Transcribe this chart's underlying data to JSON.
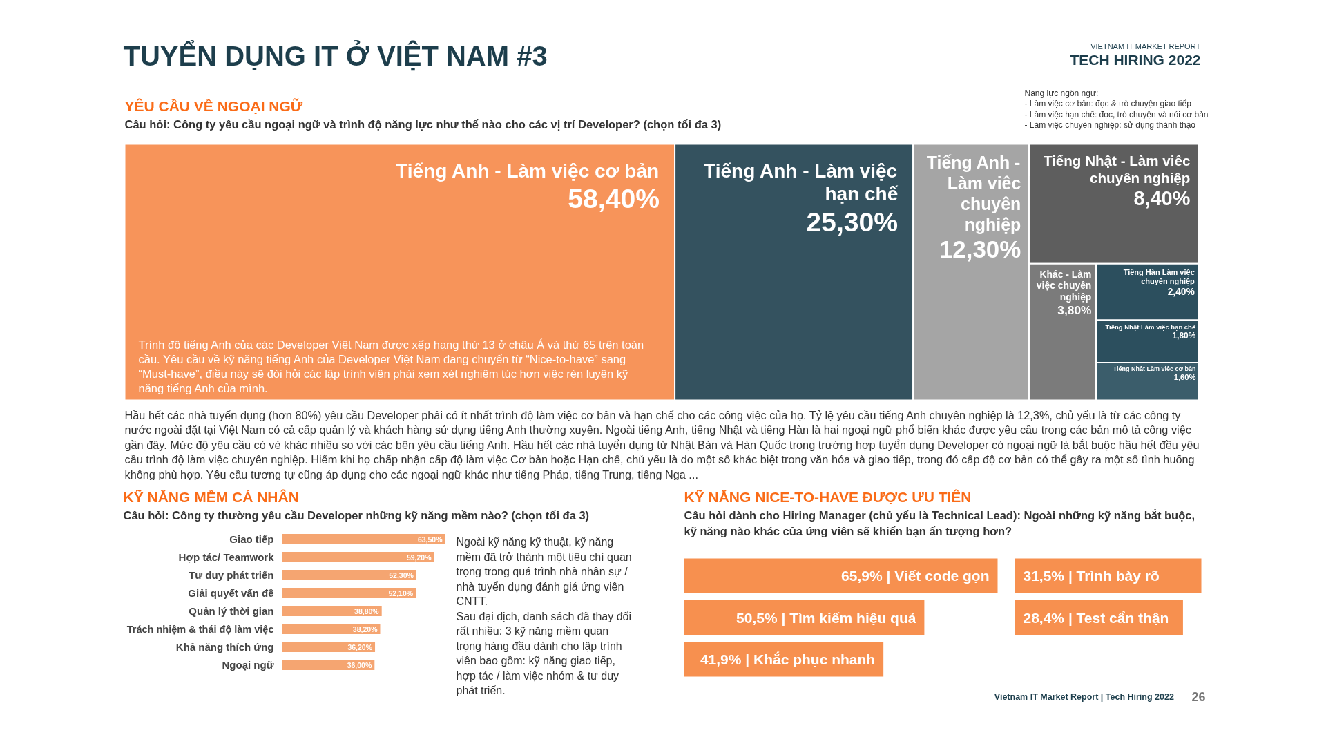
{
  "chart_data": [
    {
      "type": "other",
      "title": "YÊU CẦU VỀ NGOẠI NGỮ",
      "subtitle": "Câu hỏi: Công ty yêu cầu ngoại ngữ và trình độ năng lực như thế nào cho các vị trí Developer? (chọn tối đa 3)",
      "categories": [
        "Tiếng Anh - Làm việc cơ bản",
        "Tiếng Anh - Làm việc hạn chế",
        "Tiếng Anh - Làm viêc chuyên nghiệp",
        "Tiếng Nhật - Làm viêc chuyên nghiệp",
        "Khác - Làm việc chuyên nghiệp",
        "Tiếng Hàn Làm việc chuyên nghiệp",
        "Tiếng Nhật Làm việc hạn chế",
        "Tiếng Nhật Làm việc cơ bản"
      ],
      "values": [
        58.4,
        25.3,
        12.3,
        8.4,
        3.8,
        2.4,
        1.8,
        1.6
      ],
      "value_labels": [
        "58,40%",
        "25,30%",
        "12,30%",
        "8,40%",
        "3,80%",
        "2,40%",
        "1,80%",
        "1,60%"
      ],
      "colors": [
        "#f7945a",
        "#34525f",
        "#a5a5a5",
        "#5e5e5e",
        "#7b7b7b",
        "#2c4f5e",
        "#2c4f5e",
        "#3b5d6b"
      ],
      "annotations": [
        "TUYỂN DỤNG IT Ở VIỆT NAM #3",
        "VIETNAM IT MARKET REPORT",
        "TECH HIRING 2022",
        "Năng lực ngôn ngữ:",
        "- Làm việc cơ bản: đọc & trò chuyện giao tiếp",
        "- Làm việc hạn chế: đọc, trò chuyện và nói cơ bản",
        "- Làm việc chuyên nghiệp: sử dụng thành thạo",
        "Trình độ tiếng Anh của các Developer Việt Nam được xếp hạng thứ 13 ở châu Á và thứ 65 trên toàn cầu. Yêu cầu về kỹ năng tiếng Anh của Developer Việt Nam đang chuyển từ “Nice-to-have” sang “Must-have”, điều này sẽ đòi hỏi các lập trình viên phải xem xét nghiêm túc hơn việc rèn luyện kỹ năng tiếng Anh của mình.",
        "Hầu hết các nhà tuyển dụng (hơn 80%) yêu cầu Developer phải có ít nhất trình độ làm việc cơ bản và hạn chế cho các công việc của họ. Tỷ lệ yêu cầu tiếng Anh chuyên nghiệp là 12,3%, chủ yếu là từ các công ty nước ngoài đặt tại Việt Nam có cả cấp quản lý và khách hàng sử dụng tiếng Anh thường xuyên. Ngoài tiếng Anh, tiếng Nhật và tiếng Hàn là hai ngoại ngữ phổ biến khác được yêu cầu trong các bản mô tả công việc gần đây. Mức độ yêu cầu có vẻ khác nhiều so với các bên yêu cầu tiếng Anh. Hầu hết các nhà tuyển dụng từ Nhật Bản và Hàn Quốc trong trường hợp tuyển dụng Developer có ngoại ngữ là bắt buộc hầu hết đều yêu cầu trình độ làm việc chuyên nghiệp. Hiếm khi họ chấp nhận cấp độ làm việc Cơ bản hoặc Hạn chế, chủ yếu là do một số khác biệt trong văn hóa và giao tiếp, trong đó cấp độ cơ bản có thể gây ra một số tình huống không phù hợp. Yêu cầu tương tự cũng áp dụng cho các ngoại ngữ khác như tiếng Pháp, tiếng Trung, tiếng Nga ..."
      ]
    },
    {
      "type": "bar",
      "orientation": "horizontal",
      "title": "KỸ NĂNG MỀM CÁ NHÂN",
      "subtitle": "Câu hỏi: Công ty thường yêu cầu Developer những kỹ năng mềm nào? (chọn tối đa 3)",
      "categories": [
        "Giao tiếp",
        "Hợp tác/ Teamwork",
        "Tư duy phát triển",
        "Giải quyết vấn đề",
        "Quản lý thời gian",
        "Trách nhiệm & thái độ làm việc",
        "Khả năng thích ứng",
        "Ngoại ngữ"
      ],
      "values": [
        63.5,
        59.2,
        52.3,
        52.1,
        38.8,
        38.2,
        36.2,
        36.0
      ],
      "value_labels": [
        "63,50%",
        "59,20%",
        "52,30%",
        "52,10%",
        "38,80%",
        "38,20%",
        "36,20%",
        "36,00%"
      ],
      "color": "#f5a571",
      "tick_labels": "y",
      "annotations": [
        "Ngoài kỹ năng kỹ thuật, kỹ năng mềm đã trở thành một tiêu chí quan trọng trong quá trình nhà nhân sự / nhà tuyển dụng đánh giá ứng viên CNTT.",
        "Sau đại dịch, danh sách đã thay đổi rất nhiều: 3 kỹ năng mềm quan trọng hàng đầu dành cho lập trình viên bao gồm: kỹ năng giao tiếp, hợp tác / làm việc nhóm & tư duy phát triển."
      ]
    },
    {
      "type": "bar",
      "orientation": "horizontal",
      "title": "KỸ NĂNG NICE-TO-HAVE ĐƯỢC ƯU TIÊN",
      "subtitle": "Câu hỏi dành cho Hiring Manager (chủ yếu là Technical Lead): Ngoài những kỹ năng bắt buộc, kỹ năng nào khác của ứng viên sẽ khiến bạn ấn tượng hơn?",
      "categories": [
        null,
        null,
        null
      ],
      "values": [
        65.9,
        50.5,
        41.9
      ],
      "value_labels": [
        "65,9% | Viết code gọn",
        "50,5% | Tìm kiếm hiệu quả",
        "41,9% | Khắc phục nhanh"
      ],
      "color": "#f7904f",
      "xlim": [
        0,
        65.9
      ],
      "tick_labels": false
    },
    {
      "type": "bar",
      "orientation": "horizontal",
      "categories": [
        null,
        null
      ],
      "values": [
        31.5,
        28.4
      ],
      "value_labels": [
        "31,5% | Trình bày rõ",
        "28,4% | Test cẩn thận"
      ],
      "color": "#f7904f",
      "xlim": [
        0,
        31.5
      ],
      "tick_labels": false,
      "annotations": [
        "Vietnam IT Market Report | Tech Hiring 2022",
        "26"
      ]
    }
  ]
}
